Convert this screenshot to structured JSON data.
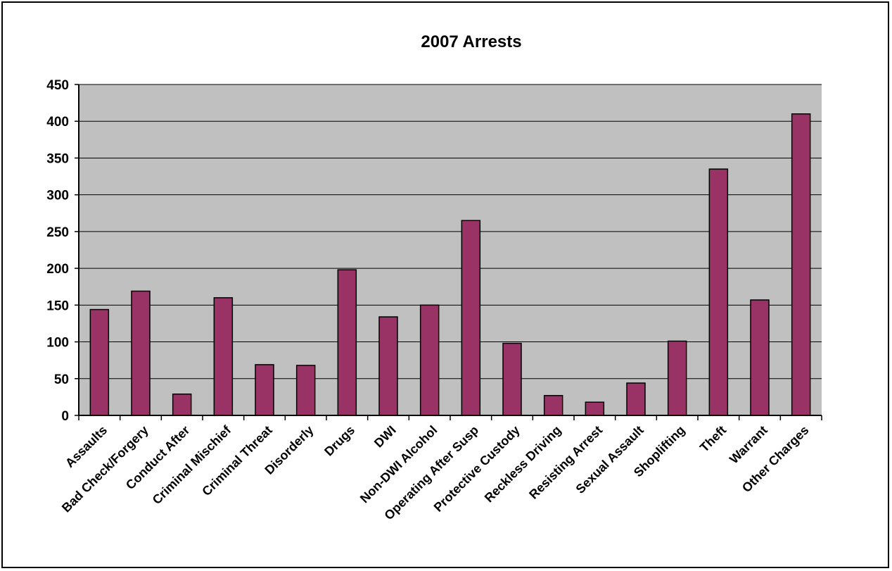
{
  "chart_data": {
    "type": "bar",
    "title": "2007 Arrests",
    "xlabel": "",
    "ylabel": "",
    "categories": [
      "Assaults",
      "Bad Check/Forgery",
      "Conduct After",
      "Criminal Mischief",
      "Criminal Threat",
      "Disorderly",
      "Drugs",
      "DWI",
      "Non-DWI Alcohol",
      "Operating After Susp",
      "Protective Custody",
      "Reckless Driving",
      "Resisting Arrest",
      "Sexual Assault",
      "Shoplifting",
      "Theft",
      "Warrant",
      "Other Charges"
    ],
    "values": [
      144,
      169,
      29,
      160,
      69,
      68,
      198,
      134,
      150,
      265,
      98,
      27,
      18,
      44,
      101,
      335,
      157,
      410
    ],
    "ylim": [
      0,
      450
    ],
    "yticks": [
      0,
      50,
      100,
      150,
      200,
      250,
      300,
      350,
      400,
      450
    ],
    "grid": true,
    "legend": "none",
    "colors": {
      "bar": "#993366",
      "plot_background": "#c0c0c0",
      "gridline": "#000000"
    }
  }
}
